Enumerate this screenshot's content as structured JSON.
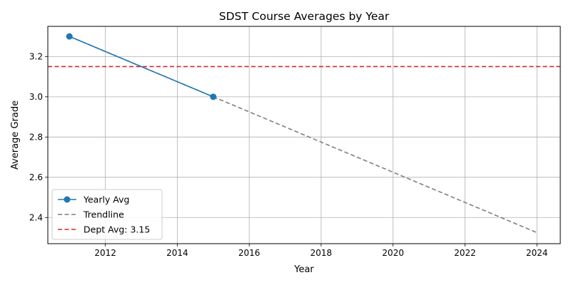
{
  "chart_data": {
    "type": "line",
    "title": "SDST Course Averages by Year",
    "xlabel": "Year",
    "ylabel": "Average Grade",
    "xlim": [
      2010.4,
      2024.65
    ],
    "ylim": [
      2.27,
      3.35
    ],
    "xticks": [
      2012,
      2014,
      2016,
      2018,
      2020,
      2022,
      2024
    ],
    "yticks": [
      2.4,
      2.6,
      2.8,
      3.0,
      3.2
    ],
    "xtick_labels": [
      "2012",
      "2014",
      "2016",
      "2018",
      "2020",
      "2022",
      "2024"
    ],
    "ytick_labels": [
      "2.4",
      "2.6",
      "2.8",
      "3.0",
      "3.2"
    ],
    "grid": true,
    "legend_position": "lower-left",
    "series": [
      {
        "name": "Yearly Avg",
        "style": "solid-markers",
        "color": "#1f77b4",
        "x": [
          2011,
          2015
        ],
        "y": [
          3.3,
          3.0
        ]
      },
      {
        "name": "Trendline",
        "style": "dashed",
        "color": "#7f7f7f",
        "x": [
          2011,
          2024
        ],
        "y": [
          3.3,
          2.325
        ]
      },
      {
        "name": "Dept Avg: 3.15",
        "style": "dashed-horizontal",
        "color": "#d62728",
        "y_value": 3.15
      }
    ]
  }
}
